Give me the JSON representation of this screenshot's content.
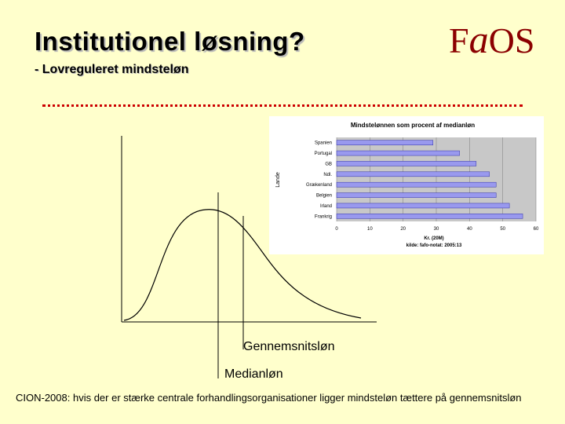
{
  "slide": {
    "title": "Institutionel løsning?",
    "subtitle": "- Lovreguleret mindsteløn",
    "logo_text": "FAOS",
    "footnote": "CION-2008: hvis der er stærke centrale forhandlingsorganisationer ligger mindsteløn tættere på gennemsnitsløn",
    "colors": {
      "background": "#ffffcc",
      "dotted_rule": "#cc0000",
      "logo": "#8b0000",
      "bar": "#9999ee"
    }
  },
  "chart_data": [
    {
      "type": "line",
      "title": "",
      "xlabel": "",
      "ylabel": "",
      "series": [
        {
          "kind": "distribution-curve",
          "peak_position": 0.35,
          "shape": "right-skewed"
        }
      ],
      "annotations": [
        {
          "text": "Gennemsnitsløn",
          "vertical_line_position": 0.52
        },
        {
          "text": "Medianløn",
          "vertical_line_position": 0.38
        }
      ]
    },
    {
      "type": "bar",
      "orientation": "horizontal",
      "title": "Mindstelønnen som procent af medianløn",
      "ylabel": "Lande",
      "xlabel": "Kr. (20M)",
      "source": "kilde: fafo-notat: 2005:13",
      "categories": [
        "Spanien",
        "Portugal",
        "GB",
        "Ndl.",
        "Grækenland",
        "Belgien",
        "Irland",
        "Frankrig"
      ],
      "values": [
        29,
        37,
        42,
        46,
        48,
        48,
        52,
        56
      ],
      "xlim": [
        0,
        60
      ],
      "xticks": [
        "0",
        "10",
        "20",
        "30",
        "40",
        "50",
        "60"
      ]
    }
  ]
}
